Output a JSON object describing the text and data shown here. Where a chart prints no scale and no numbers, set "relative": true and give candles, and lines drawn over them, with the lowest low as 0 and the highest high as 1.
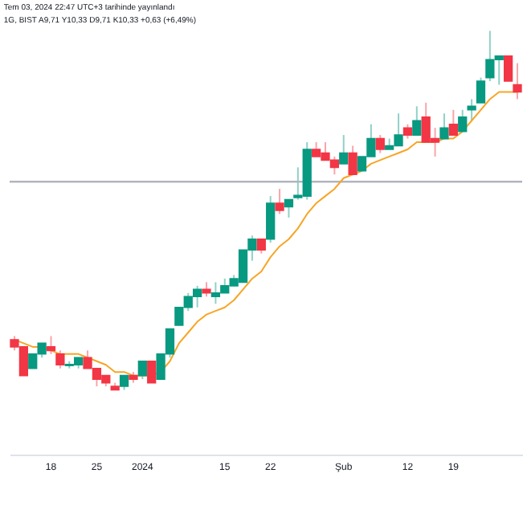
{
  "chart_data": {
    "type": "candlestick",
    "relative": true,
    "annotations": [
      "Tem 03, 2024 22:47 UTC+3 tarihinde yayınlandı",
      "1G, BIST A9,71 Y10,33 D9,71 K10,33 +0,63 (+6,49%)"
    ],
    "categories": [
      null,
      null,
      null,
      null,
      "18",
      null,
      null,
      null,
      null,
      "25",
      null,
      null,
      null,
      null,
      "2024",
      null,
      null,
      null,
      null,
      null,
      null,
      null,
      null,
      "15",
      null,
      null,
      null,
      null,
      "22",
      null,
      null,
      null,
      null,
      null,
      null,
      null,
      "Şub",
      null,
      null,
      null,
      null,
      null,
      null,
      "12",
      null,
      null,
      null,
      null,
      "19",
      null,
      null,
      null,
      null,
      null,
      null,
      null
    ],
    "ohlc": [
      [
        0.14,
        0.15,
        0.11,
        0.12
      ],
      [
        0.12,
        0.12,
        0.04,
        0.04
      ],
      [
        0.06,
        0.1,
        0.06,
        0.1
      ],
      [
        0.1,
        0.13,
        0.09,
        0.13
      ],
      [
        0.12,
        0.15,
        0.1,
        0.11
      ],
      [
        0.1,
        0.11,
        0.06,
        0.07
      ],
      [
        0.068,
        0.08,
        0.06,
        0.071
      ],
      [
        0.07,
        0.09,
        0.06,
        0.09
      ],
      [
        0.09,
        0.11,
        0.06,
        0.06
      ],
      [
        0.06,
        0.06,
        0.01,
        0.03
      ],
      [
        0.04,
        0.04,
        0.01,
        0.02
      ],
      [
        0.01,
        0.02,
        0.0,
        0.0
      ],
      [
        0.01,
        0.04,
        0.0,
        0.04
      ],
      [
        0.04,
        0.05,
        0.02,
        0.03
      ],
      [
        0.04,
        0.08,
        0.03,
        0.08
      ],
      [
        0.08,
        0.08,
        0.02,
        0.02
      ],
      [
        0.03,
        0.1,
        0.03,
        0.1
      ],
      [
        0.1,
        0.17,
        0.09,
        0.17
      ],
      [
        0.18,
        0.23,
        0.18,
        0.23
      ],
      [
        0.23,
        0.27,
        0.22,
        0.26
      ],
      [
        0.26,
        0.29,
        0.23,
        0.28
      ],
      [
        0.28,
        0.3,
        0.26,
        0.27
      ],
      [
        0.26,
        0.3,
        0.24,
        0.27
      ],
      [
        0.27,
        0.31,
        0.27,
        0.29
      ],
      [
        0.29,
        0.32,
        0.29,
        0.31
      ],
      [
        0.3,
        0.39,
        0.3,
        0.39
      ],
      [
        0.39,
        0.43,
        0.36,
        0.42
      ],
      [
        0.42,
        0.42,
        0.38,
        0.39
      ],
      [
        0.42,
        0.54,
        0.41,
        0.52
      ],
      [
        0.52,
        0.56,
        0.49,
        0.5
      ],
      [
        0.51,
        0.53,
        0.48,
        0.53
      ],
      [
        0.536,
        0.62,
        0.53,
        0.542
      ],
      [
        0.54,
        0.69,
        0.53,
        0.67
      ],
      [
        0.67,
        0.69,
        0.65,
        0.65
      ],
      [
        0.66,
        0.69,
        0.64,
        0.64
      ],
      [
        0.64,
        0.65,
        0.6,
        0.62
      ],
      [
        0.63,
        0.71,
        0.63,
        0.66
      ],
      [
        0.66,
        0.68,
        0.6,
        0.6
      ],
      [
        0.61,
        0.65,
        0.61,
        0.65
      ],
      [
        0.65,
        0.74,
        0.65,
        0.7
      ],
      [
        0.7,
        0.71,
        0.66,
        0.67
      ],
      [
        0.67,
        0.7,
        0.67,
        0.68
      ],
      [
        0.68,
        0.77,
        0.68,
        0.71
      ],
      [
        0.73,
        0.74,
        0.7,
        0.71
      ],
      [
        0.71,
        0.79,
        0.71,
        0.75
      ],
      [
        0.76,
        0.8,
        0.69,
        0.69
      ],
      [
        0.7,
        0.73,
        0.65,
        0.69
      ],
      [
        0.7,
        0.77,
        0.7,
        0.73
      ],
      [
        0.74,
        0.78,
        0.71,
        0.71
      ],
      [
        0.72,
        0.78,
        0.72,
        0.76
      ],
      [
        0.78,
        0.81,
        0.75,
        0.79
      ],
      [
        0.8,
        0.87,
        0.8,
        0.86
      ],
      [
        0.87,
        1.0,
        0.86,
        0.92
      ],
      [
        0.92,
        0.93,
        0.85,
        0.93
      ],
      [
        0.93,
        0.93,
        0.86,
        0.86
      ],
      [
        0.85,
        0.91,
        0.81,
        0.83
      ]
    ],
    "colors": [
      "#f23645",
      "#f23645",
      "#089981",
      "#089981",
      "#f23645",
      "#f23645",
      "#089981",
      "#089981",
      "#f23645",
      "#f23645",
      "#f23645",
      "#f23645",
      "#089981",
      "#f23645",
      "#089981",
      "#f23645",
      "#089981",
      "#089981",
      "#089981",
      "#089981",
      "#089981",
      "#f23645",
      "#089981",
      "#089981",
      "#089981",
      "#089981",
      "#089981",
      "#f23645",
      "#089981",
      "#f23645",
      "#089981",
      "#089981",
      "#089981",
      "#f23645",
      "#f23645",
      "#f23645",
      "#089981",
      "#f23645",
      "#089981",
      "#089981",
      "#f23645",
      "#089981",
      "#089981",
      "#f23645",
      "#089981",
      "#f23645",
      "#f23645",
      "#089981",
      "#f23645",
      "#089981",
      "#089981",
      "#089981",
      "#089981",
      "#089981",
      "#f23645",
      "#f23645"
    ],
    "series": [
      {
        "type": "line",
        "color": "#f7a525",
        "values": [
          0.14,
          0.13,
          0.12,
          0.12,
          0.11,
          0.1,
          0.1,
          0.1,
          0.09,
          0.08,
          0.07,
          0.05,
          0.05,
          0.04,
          0.04,
          0.04,
          0.05,
          0.08,
          0.13,
          0.16,
          0.19,
          0.21,
          0.22,
          0.23,
          0.25,
          0.28,
          0.31,
          0.33,
          0.37,
          0.4,
          0.42,
          0.45,
          0.49,
          0.52,
          0.54,
          0.56,
          0.59,
          0.6,
          0.61,
          0.63,
          0.64,
          0.65,
          0.66,
          0.67,
          0.69,
          0.69,
          0.69,
          0.7,
          0.7,
          0.72,
          0.75,
          0.78,
          0.81,
          0.83,
          0.83,
          0.83
        ]
      }
    ],
    "ref_lines": [
      {
        "axis": "y",
        "value": 0.58,
        "color": "#b2b5be"
      }
    ]
  }
}
